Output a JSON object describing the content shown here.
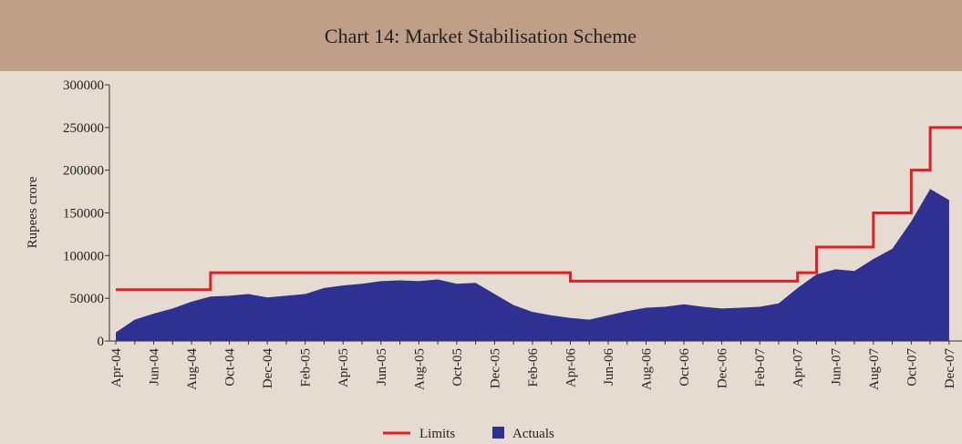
{
  "chart_data": {
    "type": "area-line",
    "title": "Chart 14: Market Stabilisation Scheme",
    "y_label": "Rupees  crore",
    "categories": [
      "Apr-04",
      null,
      "Jun-04",
      null,
      "Aug-04",
      null,
      "Oct-04",
      null,
      "Dec-04",
      null,
      "Feb-05",
      null,
      "Apr-05",
      null,
      "Jun-05",
      null,
      "Aug-05",
      null,
      "Oct-05",
      null,
      "Dec-05",
      null,
      "Feb-06",
      null,
      "Apr-06",
      null,
      "Jun-06",
      null,
      "Aug-06",
      null,
      "Oct-06",
      null,
      "Dec-06",
      null,
      "Feb-07",
      null,
      "Apr-07",
      null,
      "Jun-07",
      null,
      "Aug-07",
      null,
      "Oct-07",
      null,
      "Dec-07"
    ],
    "series": [
      {
        "name": "Limits",
        "color": "#e31e24",
        "style": "step",
        "values": [
          60000,
          60000,
          60000,
          60000,
          60000,
          80000,
          80000,
          80000,
          80000,
          80000,
          80000,
          80000,
          80000,
          80000,
          80000,
          80000,
          80000,
          80000,
          80000,
          80000,
          80000,
          80000,
          80000,
          80000,
          70000,
          70000,
          70000,
          70000,
          70000,
          70000,
          70000,
          70000,
          70000,
          70000,
          70000,
          70000,
          80000,
          110000,
          110000,
          110000,
          150000,
          150000,
          200000,
          250000,
          250000
        ]
      },
      {
        "name": "Actuals",
        "color": "#2e3192",
        "style": "area",
        "values": [
          10000,
          25000,
          32000,
          38000,
          46000,
          52000,
          53000,
          55000,
          51000,
          53000,
          55000,
          62000,
          65000,
          67000,
          70000,
          71000,
          70000,
          72000,
          67000,
          68000,
          55000,
          42000,
          34000,
          30000,
          27000,
          25000,
          30000,
          35000,
          39000,
          40000,
          43000,
          40000,
          38000,
          39000,
          40000,
          44000,
          62000,
          78000,
          84000,
          82000,
          96000,
          108000,
          140000,
          178000,
          165000
        ]
      }
    ],
    "ylim": [
      0,
      300000
    ],
    "yticks": [
      0,
      50000,
      100000,
      150000,
      200000,
      250000,
      300000
    ]
  }
}
